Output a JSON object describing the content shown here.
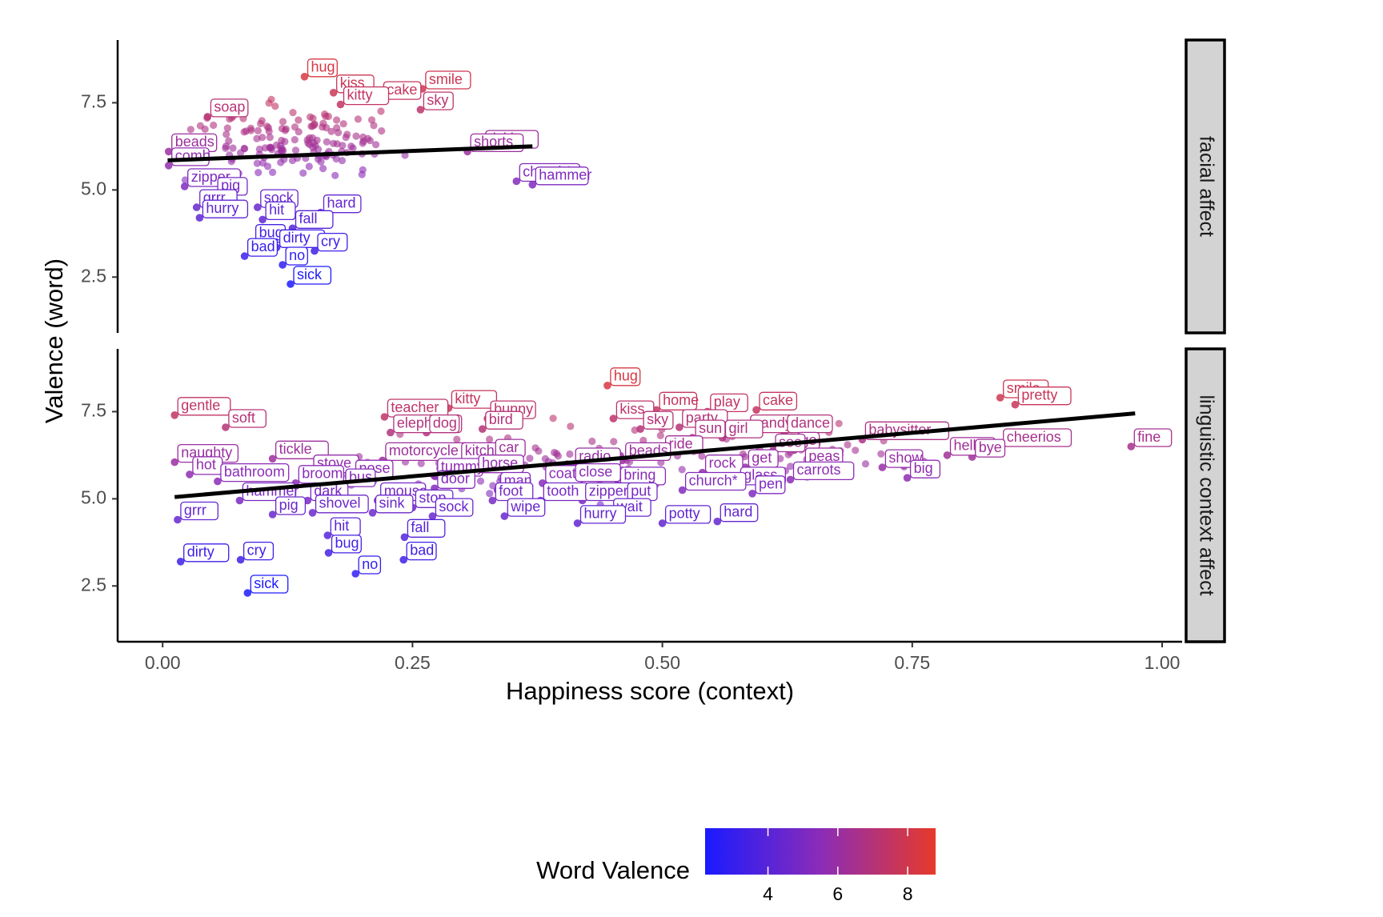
{
  "chart_data": {
    "type": "scatter",
    "x_title": "Happiness score (context)",
    "y_title": "Valence (word)",
    "x_ticks": [
      "0.00",
      "0.25",
      "0.50",
      "0.75",
      "1.00"
    ],
    "y_ticks": [
      "2.5",
      "5.0",
      "7.5"
    ],
    "xlim": [
      -0.045,
      1.02
    ],
    "ylim": [
      0.9,
      9.3
    ],
    "legend": {
      "title": "Word Valence",
      "ticks": [
        "4",
        "6",
        "8"
      ],
      "range": [
        2.2,
        8.8
      ],
      "low_color": "#1a1aff",
      "mid_color": "#8b2cb8",
      "high_color": "#e63a2a",
      "position": "bottom"
    },
    "panels": [
      {
        "strip": "facial affect",
        "trend": {
          "x0": 0.005,
          "y0": 5.85,
          "x1": 0.37,
          "y1": 6.25
        },
        "points": [
          {
            "w": "hug",
            "x": 0.142,
            "y": 8.25
          },
          {
            "w": "kiss",
            "x": 0.171,
            "y": 7.79
          },
          {
            "w": "smile",
            "x": 0.26,
            "y": 7.9
          },
          {
            "w": "cake",
            "x": 0.218,
            "y": 7.6
          },
          {
            "w": "kitty",
            "x": 0.178,
            "y": 7.45
          },
          {
            "w": "soap",
            "x": 0.045,
            "y": 7.1
          },
          {
            "w": "sky",
            "x": 0.258,
            "y": 7.3
          },
          {
            "w": "beads",
            "x": 0.006,
            "y": 6.1
          },
          {
            "w": "tickle",
            "x": 0.32,
            "y": 6.2
          },
          {
            "w": "shorts",
            "x": 0.305,
            "y": 6.1
          },
          {
            "w": "comb",
            "x": 0.006,
            "y": 5.7
          },
          {
            "w": "church*",
            "x": 0.354,
            "y": 5.25
          },
          {
            "w": "zipper",
            "x": 0.022,
            "y": 5.1
          },
          {
            "w": "hammer",
            "x": 0.37,
            "y": 5.15
          },
          {
            "w": "pig",
            "x": 0.052,
            "y": 4.85
          },
          {
            "w": "grrr",
            "x": 0.034,
            "y": 4.5
          },
          {
            "w": "sock",
            "x": 0.095,
            "y": 4.5
          },
          {
            "w": "hurry",
            "x": 0.037,
            "y": 4.2
          },
          {
            "w": "hit",
            "x": 0.1,
            "y": 4.15
          },
          {
            "w": "hard",
            "x": 0.158,
            "y": 4.35
          },
          {
            "w": "fall",
            "x": 0.13,
            "y": 3.9
          },
          {
            "w": "bug",
            "x": 0.09,
            "y": 3.5
          },
          {
            "w": "dirty",
            "x": 0.114,
            "y": 3.35
          },
          {
            "w": "cry",
            "x": 0.152,
            "y": 3.25
          },
          {
            "w": "bad",
            "x": 0.082,
            "y": 3.1
          },
          {
            "w": "no",
            "x": 0.12,
            "y": 2.85
          },
          {
            "w": "sick",
            "x": 0.128,
            "y": 2.3
          }
        ]
      },
      {
        "strip": "linguistic context affect",
        "trend": {
          "x0": 0.012,
          "y0": 5.05,
          "x1": 0.973,
          "y1": 7.45
        },
        "points": [
          {
            "w": "hug",
            "x": 0.445,
            "y": 8.25
          },
          {
            "w": "smile",
            "x": 0.838,
            "y": 7.9
          },
          {
            "w": "pretty",
            "x": 0.853,
            "y": 7.7
          },
          {
            "w": "gentle",
            "x": 0.012,
            "y": 7.4
          },
          {
            "w": "teacher",
            "x": 0.222,
            "y": 7.35
          },
          {
            "w": "kitty",
            "x": 0.286,
            "y": 7.6
          },
          {
            "w": "bunny",
            "x": 0.325,
            "y": 7.3
          },
          {
            "w": "kiss",
            "x": 0.451,
            "y": 7.3
          },
          {
            "w": "home",
            "x": 0.494,
            "y": 7.55
          },
          {
            "w": "play",
            "x": 0.545,
            "y": 7.5
          },
          {
            "w": "cake",
            "x": 0.594,
            "y": 7.55
          },
          {
            "w": "soft",
            "x": 0.063,
            "y": 7.05
          },
          {
            "w": "elephant",
            "x": 0.228,
            "y": 6.9
          },
          {
            "w": "dog",
            "x": 0.264,
            "y": 6.9
          },
          {
            "w": "bird",
            "x": 0.32,
            "y": 7.0
          },
          {
            "w": "sky",
            "x": 0.478,
            "y": 7.0
          },
          {
            "w": "party",
            "x": 0.517,
            "y": 7.05
          },
          {
            "w": "sandy",
            "x": 0.585,
            "y": 6.9
          },
          {
            "w": "dance",
            "x": 0.622,
            "y": 6.9
          },
          {
            "w": "sun",
            "x": 0.53,
            "y": 6.75
          },
          {
            "w": "girl",
            "x": 0.56,
            "y": 6.75
          },
          {
            "w": "babysitter",
            "x": 0.7,
            "y": 6.7
          },
          {
            "w": "naughty",
            "x": 0.012,
            "y": 6.05
          },
          {
            "w": "tickle",
            "x": 0.11,
            "y": 6.15
          },
          {
            "w": "motorcycle",
            "x": 0.22,
            "y": 6.1
          },
          {
            "w": "kitchen",
            "x": 0.296,
            "y": 6.1
          },
          {
            "w": "car",
            "x": 0.33,
            "y": 6.2
          },
          {
            "w": "ride",
            "x": 0.5,
            "y": 6.3
          },
          {
            "w": "go",
            "x": 0.632,
            "y": 6.4
          },
          {
            "w": "see",
            "x": 0.61,
            "y": 6.35
          },
          {
            "w": "cheerios",
            "x": 0.838,
            "y": 6.5
          },
          {
            "w": "fine",
            "x": 0.969,
            "y": 6.5
          },
          {
            "w": "hot",
            "x": 0.027,
            "y": 5.7
          },
          {
            "w": "stove",
            "x": 0.148,
            "y": 5.75
          },
          {
            "w": "nose",
            "x": 0.19,
            "y": 5.6
          },
          {
            "w": "tummy",
            "x": 0.272,
            "y": 5.65
          },
          {
            "w": "horse",
            "x": 0.313,
            "y": 5.75
          },
          {
            "w": "radio",
            "x": 0.41,
            "y": 5.95
          },
          {
            "w": "beads",
            "x": 0.46,
            "y": 6.1
          },
          {
            "w": "show",
            "x": 0.72,
            "y": 5.9
          },
          {
            "w": "hello",
            "x": 0.785,
            "y": 6.25
          },
          {
            "w": "bye",
            "x": 0.81,
            "y": 6.2
          },
          {
            "w": "peas",
            "x": 0.64,
            "y": 5.95
          },
          {
            "w": "rock",
            "x": 0.54,
            "y": 5.75
          },
          {
            "w": "get",
            "x": 0.583,
            "y": 5.9
          },
          {
            "w": "bathroom",
            "x": 0.055,
            "y": 5.5
          },
          {
            "w": "broom",
            "x": 0.133,
            "y": 5.45
          },
          {
            "w": "bus",
            "x": 0.18,
            "y": 5.35
          },
          {
            "w": "coat",
            "x": 0.38,
            "y": 5.45
          },
          {
            "w": "close",
            "x": 0.41,
            "y": 5.5
          },
          {
            "w": "bring",
            "x": 0.455,
            "y": 5.4
          },
          {
            "w": "glass",
            "x": 0.575,
            "y": 5.4
          },
          {
            "w": "carrots",
            "x": 0.628,
            "y": 5.55
          },
          {
            "w": "big",
            "x": 0.745,
            "y": 5.6
          },
          {
            "w": "door",
            "x": 0.272,
            "y": 5.3
          },
          {
            "w": "man",
            "x": 0.335,
            "y": 5.25
          },
          {
            "w": "pen",
            "x": 0.59,
            "y": 5.15
          },
          {
            "w": "hammer",
            "x": 0.077,
            "y": 4.95
          },
          {
            "w": "dark",
            "x": 0.145,
            "y": 4.95
          },
          {
            "w": "mouse",
            "x": 0.215,
            "y": 4.95
          },
          {
            "w": "foot",
            "x": 0.33,
            "y": 4.95
          },
          {
            "w": "tooth",
            "x": 0.378,
            "y": 4.95
          },
          {
            "w": "zipper",
            "x": 0.42,
            "y": 4.95
          },
          {
            "w": "put",
            "x": 0.462,
            "y": 4.95
          },
          {
            "w": "church*",
            "x": 0.52,
            "y": 5.25
          },
          {
            "w": "stop",
            "x": 0.25,
            "y": 4.75
          },
          {
            "w": "hard",
            "x": 0.555,
            "y": 4.35
          },
          {
            "w": "grrr",
            "x": 0.015,
            "y": 4.4
          },
          {
            "w": "pig",
            "x": 0.11,
            "y": 4.55
          },
          {
            "w": "shovel",
            "x": 0.15,
            "y": 4.6
          },
          {
            "w": "sink",
            "x": 0.21,
            "y": 4.6
          },
          {
            "w": "sock",
            "x": 0.27,
            "y": 4.5
          },
          {
            "w": "wipe",
            "x": 0.342,
            "y": 4.5
          },
          {
            "w": "wait",
            "x": 0.448,
            "y": 4.5
          },
          {
            "w": "hurry",
            "x": 0.415,
            "y": 4.3
          },
          {
            "w": "potty",
            "x": 0.5,
            "y": 4.3
          },
          {
            "w": "hit",
            "x": 0.165,
            "y": 3.95
          },
          {
            "w": "fall",
            "x": 0.242,
            "y": 3.9
          },
          {
            "w": "bug",
            "x": 0.166,
            "y": 3.45
          },
          {
            "w": "bad",
            "x": 0.241,
            "y": 3.25
          },
          {
            "w": "dirty",
            "x": 0.018,
            "y": 3.2
          },
          {
            "w": "cry",
            "x": 0.078,
            "y": 3.25
          },
          {
            "w": "no",
            "x": 0.193,
            "y": 2.85
          },
          {
            "w": "sick",
            "x": 0.085,
            "y": 2.3
          }
        ]
      }
    ]
  }
}
